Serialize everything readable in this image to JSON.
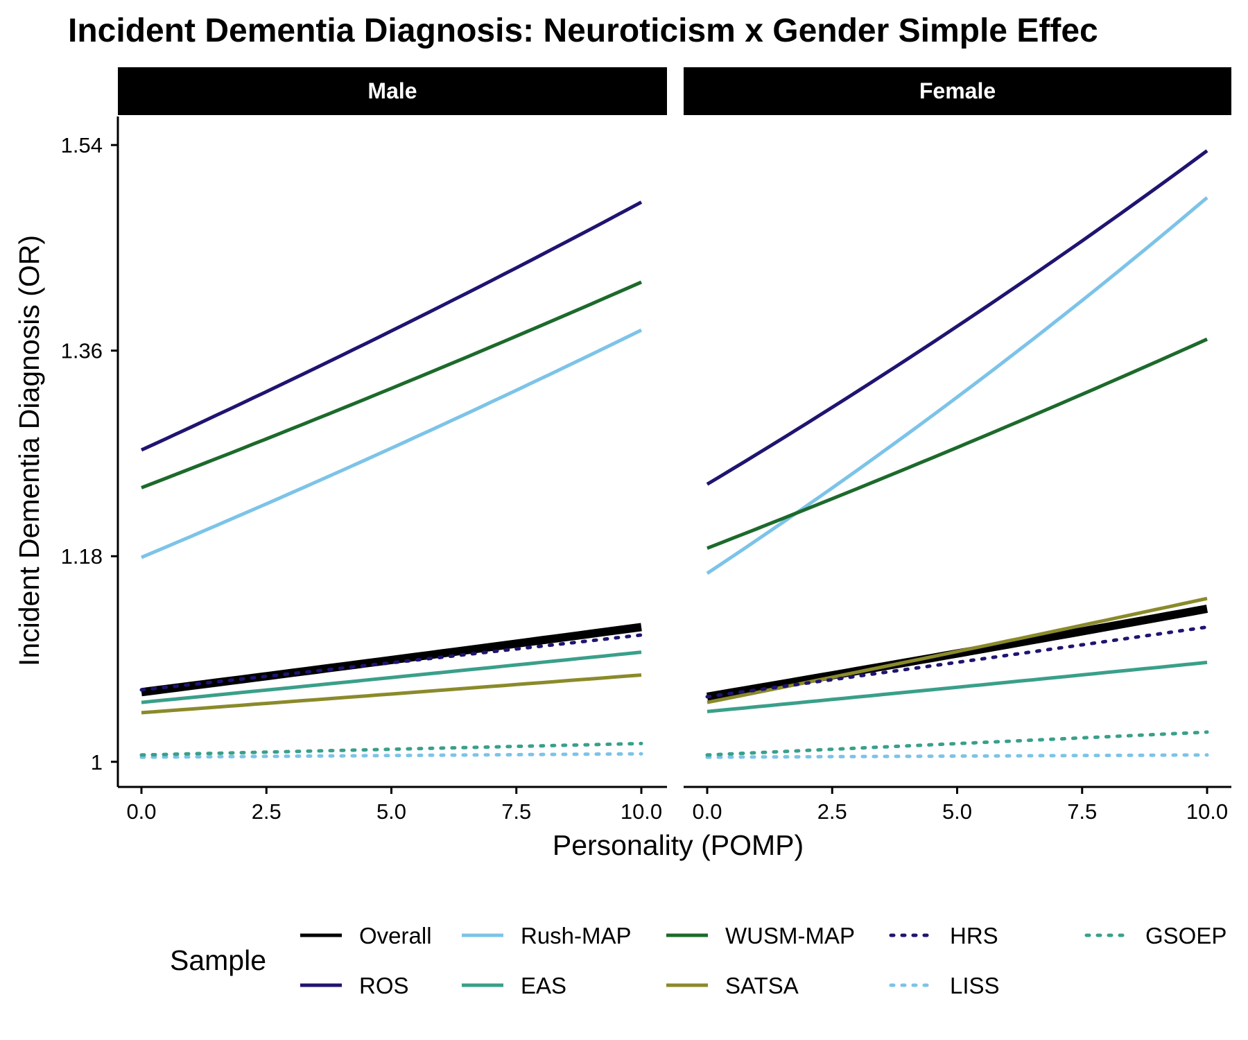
{
  "chart_data": {
    "type": "line",
    "title": "Incident Dementia Diagnosis: Neuroticism x Gender Simple Effec",
    "xlabel": "Personality (POMP)",
    "ylabel": "Incident Dementia Diagnosis (OR)",
    "xlim": [
      0,
      10
    ],
    "ylim": [
      0.978,
      1.565
    ],
    "x_ticks": [
      0,
      2.5,
      5,
      7.5,
      10
    ],
    "x_tick_labels": [
      "0.0",
      "2.5",
      "5.0",
      "7.5",
      "10.0"
    ],
    "y_ticks": [
      1,
      1.18,
      1.36,
      1.54
    ],
    "y_tick_labels": [
      "1",
      "1.18",
      "1.36",
      "1.54"
    ],
    "grid": false,
    "legend": {
      "title": "Sample",
      "position": "bottom",
      "entries": [
        "Overall",
        "ROS",
        "Rush-MAP",
        "EAS",
        "WUSM-MAP",
        "SATSA",
        "HRS",
        "LISS",
        "GSOEP"
      ]
    },
    "panels": [
      {
        "label": "Male",
        "series": [
          {
            "name": "Overall",
            "color": "#000000",
            "dash": "solid",
            "start": 1.061,
            "end": 1.118
          },
          {
            "name": "ROS",
            "color": "#1f1470",
            "dash": "solid",
            "start": 1.273,
            "end": 1.49
          },
          {
            "name": "Rush-MAP",
            "color": "#7cc3e8",
            "dash": "solid",
            "start": 1.179,
            "end": 1.378
          },
          {
            "name": "EAS",
            "color": "#3a9f8a",
            "dash": "solid",
            "start": 1.052,
            "end": 1.096
          },
          {
            "name": "WUSM-MAP",
            "color": "#1c6a2c",
            "dash": "solid",
            "start": 1.24,
            "end": 1.42
          },
          {
            "name": "SATSA",
            "color": "#8b8a2b",
            "dash": "solid",
            "start": 1.043,
            "end": 1.076
          },
          {
            "name": "HRS",
            "color": "#1f1470",
            "dash": "dotted",
            "start": 1.063,
            "end": 1.111
          },
          {
            "name": "LISS",
            "color": "#7cc3e8",
            "dash": "dotted",
            "start": 1.004,
            "end": 1.007
          },
          {
            "name": "GSOEP",
            "color": "#3a9f8a",
            "dash": "dotted",
            "start": 1.006,
            "end": 1.016
          }
        ]
      },
      {
        "label": "Female",
        "series": [
          {
            "name": "Overall",
            "color": "#000000",
            "dash": "solid",
            "start": 1.057,
            "end": 1.134
          },
          {
            "name": "ROS",
            "color": "#1f1470",
            "dash": "solid",
            "start": 1.243,
            "end": 1.535
          },
          {
            "name": "Rush-MAP",
            "color": "#7cc3e8",
            "dash": "solid",
            "start": 1.165,
            "end": 1.494
          },
          {
            "name": "EAS",
            "color": "#3a9f8a",
            "dash": "solid",
            "start": 1.044,
            "end": 1.087
          },
          {
            "name": "WUSM-MAP",
            "color": "#1c6a2c",
            "dash": "solid",
            "start": 1.187,
            "end": 1.37
          },
          {
            "name": "SATSA",
            "color": "#8b8a2b",
            "dash": "solid",
            "start": 1.052,
            "end": 1.143
          },
          {
            "name": "HRS",
            "color": "#1f1470",
            "dash": "dotted",
            "start": 1.057,
            "end": 1.118
          },
          {
            "name": "LISS",
            "color": "#7cc3e8",
            "dash": "dotted",
            "start": 1.004,
            "end": 1.006
          },
          {
            "name": "GSOEP",
            "color": "#3a9f8a",
            "dash": "dotted",
            "start": 1.006,
            "end": 1.026
          }
        ]
      }
    ]
  }
}
